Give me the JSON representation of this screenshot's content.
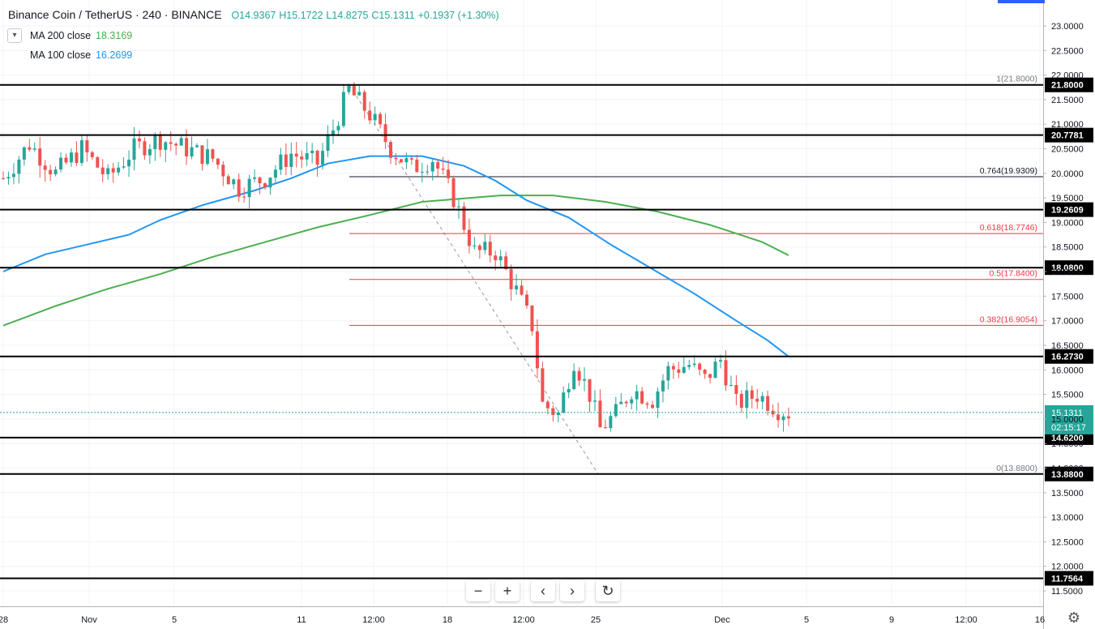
{
  "header": {
    "symbol": "Binance Coin / TetherUS",
    "interval": "240",
    "exchange": "BINANCE",
    "open": "O14.9367",
    "high": "H15.1722",
    "low": "L14.8275",
    "close": "C15.1311",
    "change": "+0.1937 (+1.30%)"
  },
  "indicators": [
    {
      "label": "MA 200 close",
      "value": "18.3169",
      "color": "#4caf50"
    },
    {
      "label": "MA 100 close",
      "value": "16.2699",
      "color": "#2196f3"
    }
  ],
  "toolbar": {
    "zoom_out": "−",
    "zoom_in": "+",
    "scroll_left": "‹",
    "scroll_right": "›",
    "reset": "↻"
  },
  "icons": {
    "collapse": "chevron-down-icon",
    "settings": "gear-icon"
  },
  "chart_data": {
    "type": "candlestick",
    "ylim": [
      11.2,
      23.4
    ],
    "y_ticks": [
      "11.5000",
      "12.0000",
      "12.5000",
      "13.0000",
      "13.5000",
      "14.0000",
      "14.5000",
      "15.0000",
      "15.5000",
      "16.0000",
      "16.5000",
      "17.0000",
      "17.5000",
      "18.0000",
      "18.5000",
      "19.0000",
      "19.5000",
      "20.0000",
      "20.5000",
      "21.0000",
      "21.5000",
      "22.0000",
      "22.5000",
      "23.0000"
    ],
    "x_ticks": [
      "28",
      "Nov",
      "5",
      "11",
      "12:00",
      "18",
      "12:00",
      "25",
      "Dec",
      "5",
      "9",
      "12:00",
      "16"
    ],
    "horizontal_levels": [
      "21.8000",
      "20.7781",
      "19.2609",
      "18.0800",
      "16.2730",
      "14.6200",
      "13.8800",
      "11.7564"
    ],
    "fibonacci": [
      {
        "label": "1(21.8000)",
        "value": 21.8,
        "color": "#787b86"
      },
      {
        "label": "0.764(19.9309)",
        "value": 19.9309,
        "color": "#131722"
      },
      {
        "label": "0.618(18.7746)",
        "value": 18.7746,
        "color": "#f23645"
      },
      {
        "label": "0.5(17.8400)",
        "value": 17.84,
        "color": "#f23645"
      },
      {
        "label": "0.382(16.9054)",
        "value": 16.9054,
        "color": "#f23645"
      },
      {
        "label": "0(13.8800)",
        "value": 13.88,
        "color": "#787b86"
      }
    ],
    "last_price": "15.1311",
    "countdown": "02:15:17",
    "ma200": [
      [
        0,
        16.9
      ],
      [
        10,
        17.3
      ],
      [
        20,
        17.65
      ],
      [
        30,
        17.95
      ],
      [
        40,
        18.3
      ],
      [
        50,
        18.6
      ],
      [
        60,
        18.9
      ],
      [
        70,
        19.15
      ],
      [
        80,
        19.42
      ],
      [
        95,
        19.55
      ],
      [
        105,
        19.55
      ],
      [
        115,
        19.42
      ],
      [
        125,
        19.22
      ],
      [
        135,
        18.95
      ],
      [
        145,
        18.6
      ],
      [
        150,
        18.33
      ]
    ],
    "ma100": [
      [
        0,
        18.0
      ],
      [
        8,
        18.35
      ],
      [
        16,
        18.55
      ],
      [
        24,
        18.75
      ],
      [
        30,
        19.05
      ],
      [
        38,
        19.35
      ],
      [
        48,
        19.65
      ],
      [
        55,
        19.9
      ],
      [
        62,
        20.2
      ],
      [
        70,
        20.35
      ],
      [
        80,
        20.35
      ],
      [
        88,
        20.15
      ],
      [
        94,
        19.85
      ],
      [
        100,
        19.45
      ],
      [
        108,
        19.1
      ],
      [
        116,
        18.55
      ],
      [
        124,
        18.05
      ],
      [
        132,
        17.55
      ],
      [
        140,
        17.0
      ],
      [
        146,
        16.6
      ],
      [
        150,
        16.27
      ]
    ],
    "price_path": [
      [
        0,
        19.9
      ],
      [
        5,
        20.6
      ],
      [
        10,
        20.0
      ],
      [
        15,
        20.5
      ],
      [
        20,
        19.9
      ],
      [
        25,
        20.5
      ],
      [
        30,
        20.7
      ],
      [
        35,
        20.5
      ],
      [
        40,
        20.3
      ],
      [
        45,
        19.7
      ],
      [
        50,
        19.9
      ],
      [
        55,
        20.4
      ],
      [
        60,
        20.2
      ],
      [
        63,
        20.9
      ],
      [
        66,
        21.7
      ],
      [
        70,
        21.2
      ],
      [
        74,
        20.5
      ],
      [
        78,
        20.1
      ],
      [
        82,
        20.3
      ],
      [
        86,
        19.5
      ],
      [
        90,
        18.4
      ],
      [
        94,
        18.4
      ],
      [
        98,
        17.6
      ],
      [
        101,
        16.9
      ],
      [
        103,
        15.3
      ],
      [
        106,
        15.1
      ],
      [
        109,
        16.2
      ],
      [
        112,
        15.5
      ],
      [
        114,
        14.8
      ],
      [
        117,
        15.1
      ],
      [
        120,
        15.6
      ],
      [
        124,
        15.4
      ],
      [
        127,
        16.0
      ],
      [
        131,
        16.1
      ],
      [
        134,
        15.8
      ],
      [
        137,
        16.2
      ],
      [
        140,
        15.3
      ],
      [
        144,
        15.5
      ],
      [
        148,
        15.2
      ],
      [
        150,
        15.13
      ]
    ]
  }
}
